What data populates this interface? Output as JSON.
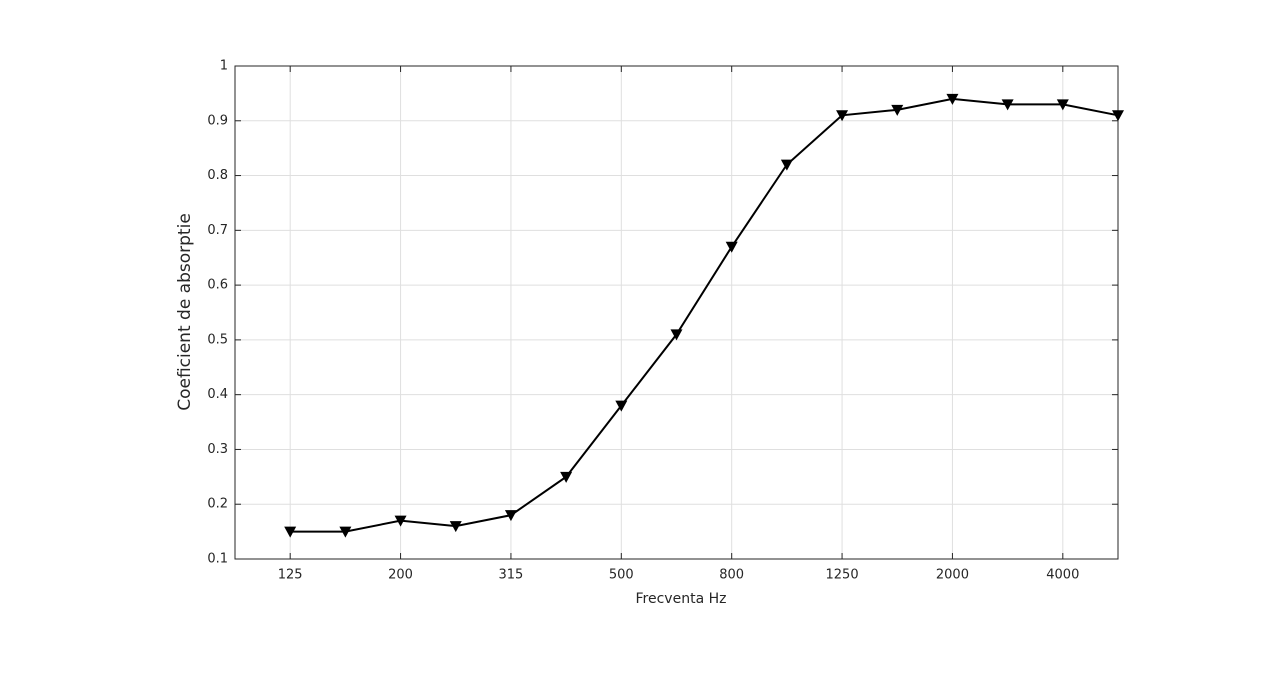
{
  "chart_data": {
    "type": "line",
    "xlabel": "Frecventa Hz",
    "ylabel": "Coeficient de absorptie",
    "categories": [
      "125",
      null,
      "200",
      null,
      "315",
      null,
      "500",
      null,
      "800",
      null,
      "1250",
      null,
      "2000",
      null,
      "4000",
      null
    ],
    "series": [
      {
        "color": "#000000",
        "marker": "down-triangle",
        "values": [
          0.15,
          0.15,
          0.17,
          0.16,
          0.18,
          0.25,
          0.38,
          0.51,
          0.67,
          0.82,
          0.91,
          0.92,
          0.94,
          0.93,
          0.93,
          0.91
        ]
      }
    ],
    "ylim": [
      0.1,
      1
    ],
    "yticks": [
      0.1,
      0.2,
      0.3,
      0.4,
      0.5,
      0.6,
      0.7,
      0.8,
      0.9,
      1
    ],
    "grid": true
  }
}
